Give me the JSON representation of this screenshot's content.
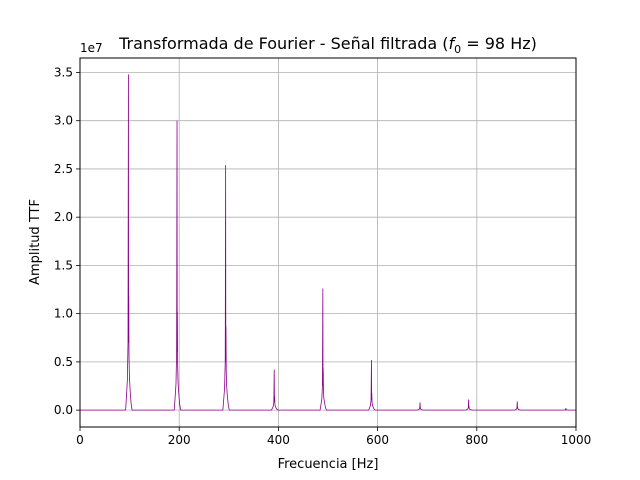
{
  "chart_data": {
    "type": "line",
    "title_main": "Transformada de Fourier - Señal filtrada (",
    "title_symbol": "f",
    "title_subscript": "0",
    "title_tail": " = 98 Hz)",
    "xlabel": "Frecuencia [Hz]",
    "ylabel": "Amplitud TTF",
    "y_offset_label": "1e7",
    "xlim": [
      0,
      1000
    ],
    "ylim": [
      -1750000,
      36500000
    ],
    "x_ticks": [
      0,
      200,
      400,
      600,
      800,
      1000
    ],
    "x_tick_labels": [
      "0",
      "200",
      "400",
      "600",
      "800",
      "1000"
    ],
    "y_ticks": [
      0,
      5000000,
      10000000,
      15000000,
      20000000,
      25000000,
      30000000,
      35000000
    ],
    "y_tick_labels": [
      "0.0",
      "0.5",
      "1.0",
      "1.5",
      "2.0",
      "2.5",
      "3.0",
      "3.5"
    ],
    "grid": true,
    "line_color": "#8b008b",
    "peaks": [
      {
        "f": 98,
        "a": 34800000
      },
      {
        "f": 196,
        "a": 30000000
      },
      {
        "f": 294,
        "a": 25400000
      },
      {
        "f": 392,
        "a": 4200000
      },
      {
        "f": 490,
        "a": 12600000
      },
      {
        "f": 588,
        "a": 5200000
      },
      {
        "f": 686,
        "a": 800000
      },
      {
        "f": 784,
        "a": 1100000
      },
      {
        "f": 882,
        "a": 900000
      },
      {
        "f": 980,
        "a": 200000
      }
    ]
  }
}
